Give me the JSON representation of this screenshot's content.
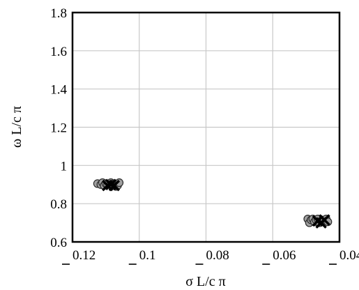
{
  "chart_data": {
    "type": "scatter",
    "xlabel": "σ L/c π",
    "ylabel": "ω L/c π",
    "x_reversed": true,
    "xlim": [
      -0.12,
      -0.04
    ],
    "ylim": [
      0.6,
      1.8
    ],
    "grid": true,
    "x_ticks": [
      -0.12,
      -0.1,
      -0.08,
      -0.06,
      -0.04
    ],
    "x_tick_labels": [
      "0.12",
      "0.1",
      "0.08",
      "0.06",
      "0.04"
    ],
    "y_ticks": [
      0.6,
      0.8,
      1.0,
      1.2,
      1.4,
      1.6,
      1.8
    ],
    "y_tick_labels": [
      "0.6",
      "0.8",
      "1",
      "1.2",
      "1.4",
      "1.6",
      "1.8"
    ],
    "series": [
      {
        "marker": "circle",
        "color": "#a0a0a0",
        "x": [
          -0.1125,
          -0.1115,
          -0.111,
          -0.1105,
          -0.11,
          -0.1095,
          -0.1085,
          -0.108,
          -0.1075,
          -0.107,
          -0.1065,
          -0.106,
          -0.0495,
          -0.049,
          -0.0485,
          -0.048,
          -0.0475,
          -0.047,
          -0.0465,
          -0.046,
          -0.0455,
          -0.0445,
          -0.044,
          -0.0435
        ],
        "y": [
          0.905,
          0.9,
          0.91,
          0.895,
          0.905,
          0.9,
          0.91,
          0.9,
          0.905,
          0.89,
          0.895,
          0.91,
          0.72,
          0.7,
          0.715,
          0.72,
          0.705,
          0.715,
          0.72,
          0.7,
          0.71,
          0.715,
          0.72,
          0.705
        ]
      },
      {
        "marker": "cross",
        "color": "#000000",
        "x": [
          -0.1095,
          -0.1085,
          -0.1075,
          -0.0465,
          -0.0455,
          -0.0445
        ],
        "y": [
          0.895,
          0.9,
          0.895,
          0.71,
          0.7,
          0.715
        ]
      }
    ]
  }
}
